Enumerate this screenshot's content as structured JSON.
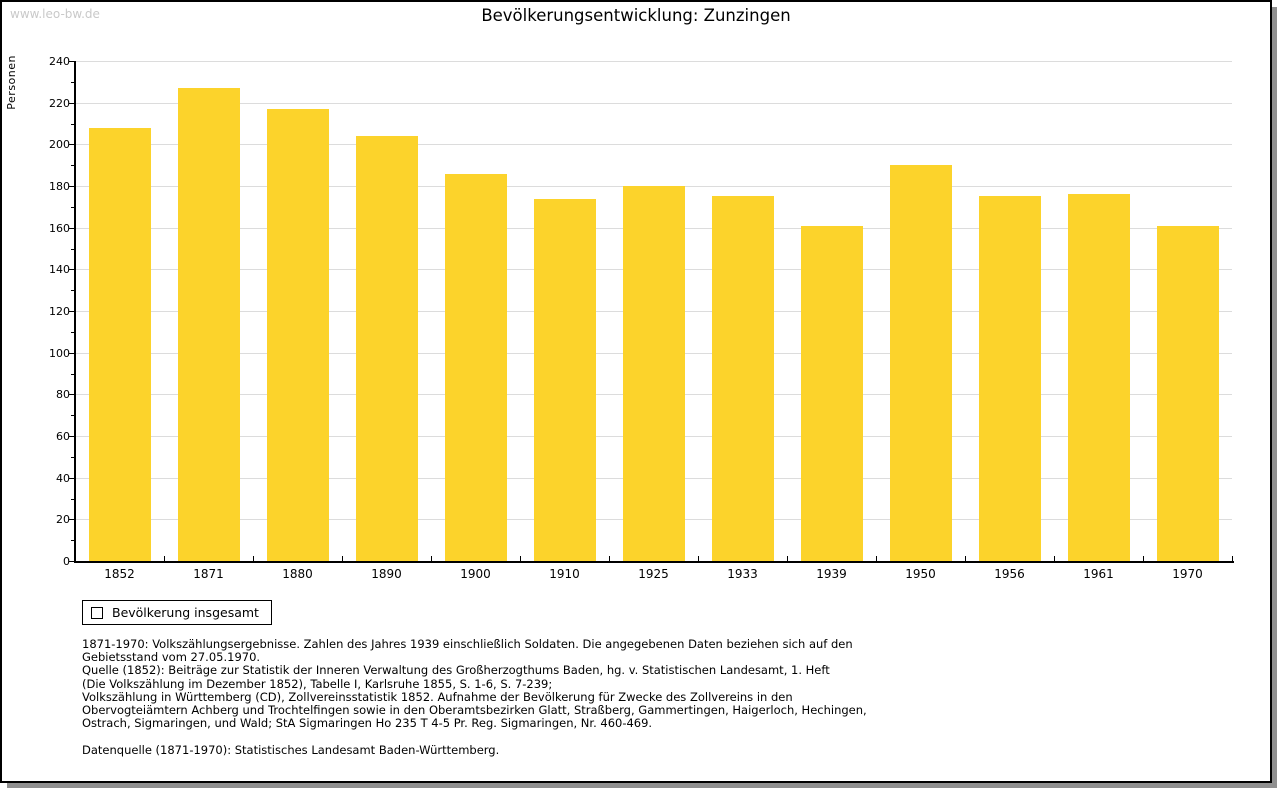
{
  "page": {
    "watermark": "www.leo-bw.de",
    "title": "Bevölkerungsentwicklung: Zunzingen"
  },
  "chart_data": {
    "type": "bar",
    "title": "Bevölkerungsentwicklung: Zunzingen",
    "xlabel": "",
    "ylabel": "Personen",
    "categories": [
      "1852",
      "1871",
      "1880",
      "1890",
      "1900",
      "1910",
      "1925",
      "1933",
      "1939",
      "1950",
      "1956",
      "1961",
      "1970"
    ],
    "series": [
      {
        "name": "Bevölkerung insgesamt",
        "values": [
          208,
          227,
          217,
          204,
          186,
          174,
          180,
          175,
          161,
          190,
          175,
          176,
          161
        ]
      }
    ],
    "ylim": [
      0,
      240
    ],
    "ytick_step": 20,
    "ytick_minor_step": 10,
    "grid": true,
    "legend_position": "bottom-left"
  },
  "legend": {
    "label": "Bevölkerung insgesamt"
  },
  "colors": {
    "bar": "#fcd32b",
    "grid": "#dcdcdc",
    "axis": "#000000",
    "watermark": "#c9c9c9"
  },
  "footnotes": {
    "lines": [
      "1871-1970: Volkszählungsergebnisse. Zahlen des Jahres 1939 einschließlich Soldaten. Die angegebenen Daten beziehen sich auf den",
      "Gebietsstand vom 27.05.1970.",
      "Quelle (1852): Beiträge zur Statistik der Inneren Verwaltung des Großherzogthums Baden, hg. v. Statistischen Landesamt, 1. Heft",
      "(Die Volkszählung im Dezember 1852), Tabelle I, Karlsruhe 1855, S. 1-6, S. 7-239;",
      "Volkszählung in Württemberg (CD), Zollvereinsstatistik 1852. Aufnahme der Bevölkerung für Zwecke des Zollvereins in den",
      "Obervogteiämtern Achberg und Trochtelfingen sowie in den Oberamtsbezirken Glatt, Straßberg, Gammertingen, Haigerloch, Hechingen,",
      "Ostrach, Sigmaringen, und Wald; StA Sigmaringen Ho 235 T 4-5 Pr. Reg. Sigmaringen, Nr. 460-469.",
      "",
      "Datenquelle (1871-1970): Statistisches Landesamt Baden-Württemberg."
    ]
  }
}
